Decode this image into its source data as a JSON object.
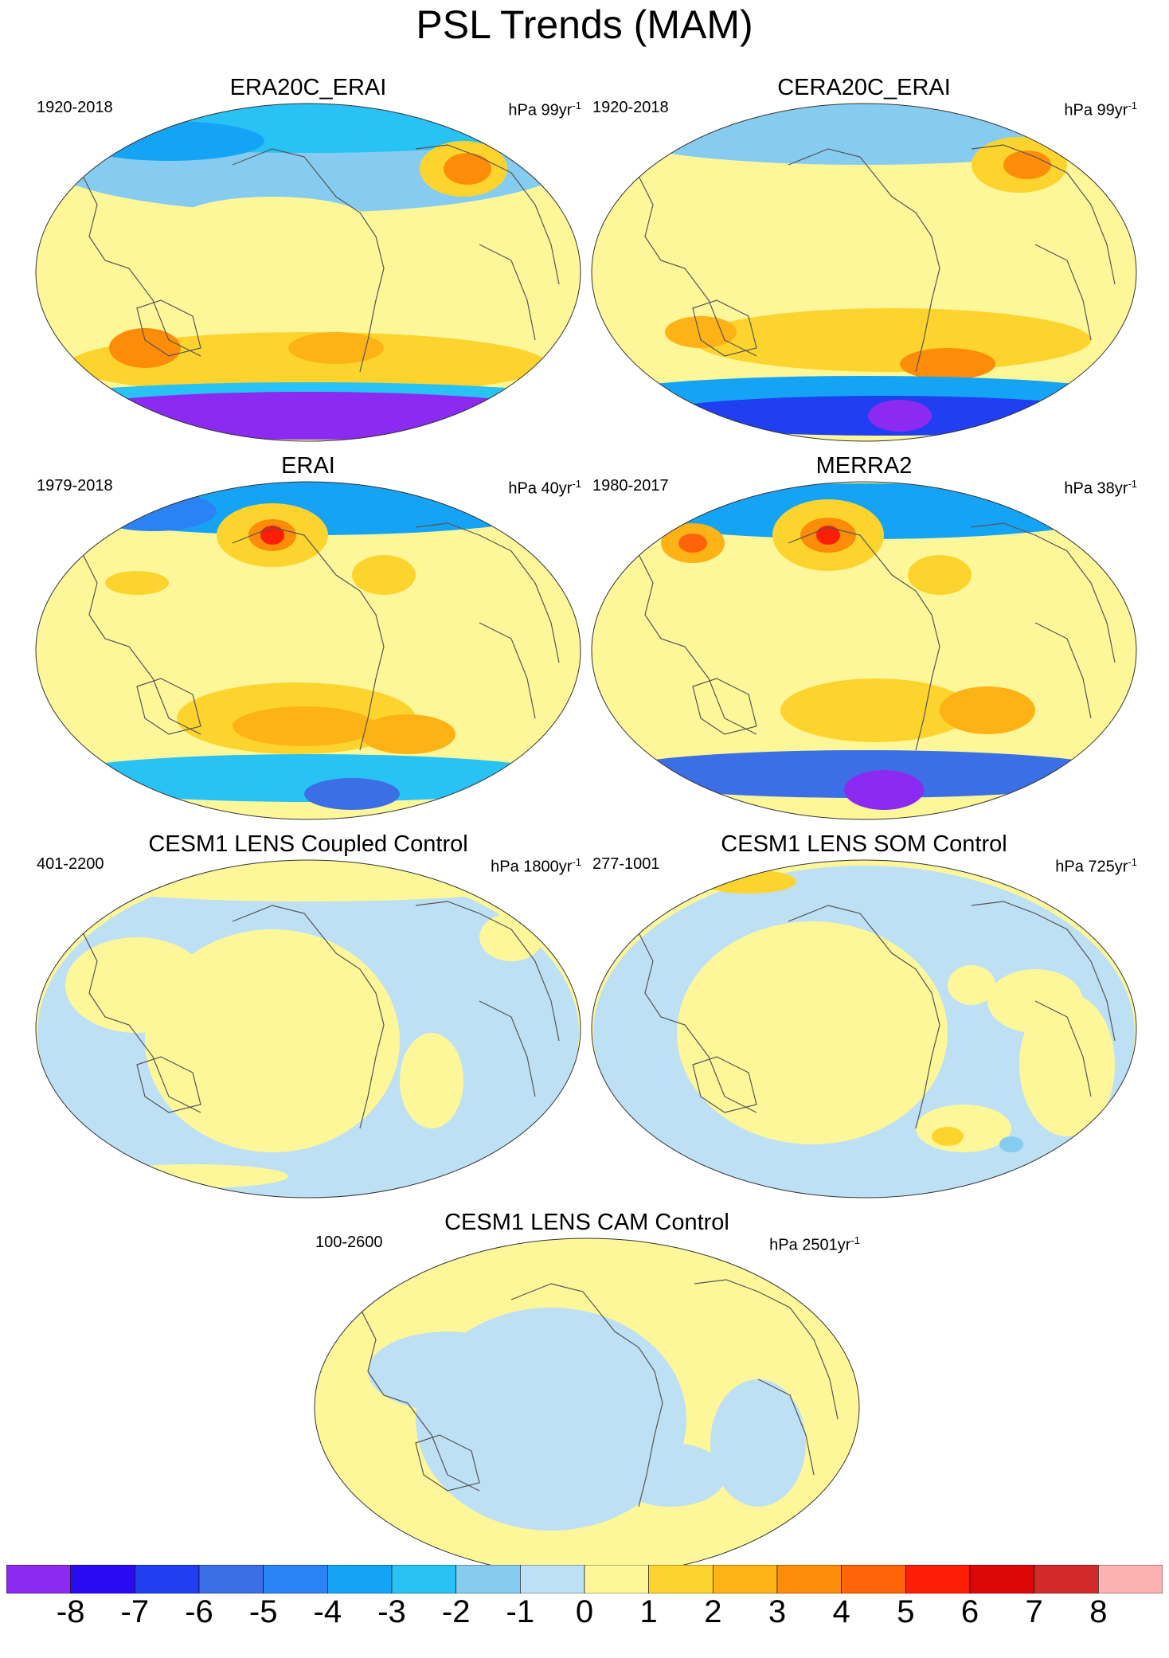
{
  "title": "PSL Trends (MAM)",
  "panels": [
    {
      "id": "era20c",
      "title": "ERA20C_ERAI",
      "period": "1920-2018",
      "units": "hPa 99yr",
      "units_sup": "-1"
    },
    {
      "id": "cera20c",
      "title": "CERA20C_ERAI",
      "period": "1920-2018",
      "units": "hPa 99yr",
      "units_sup": "-1"
    },
    {
      "id": "erai",
      "title": "ERAI",
      "period": "1979-2018",
      "units": "hPa 40yr",
      "units_sup": "-1"
    },
    {
      "id": "merra2",
      "title": "MERRA2",
      "period": "1980-2017",
      "units": "hPa 38yr",
      "units_sup": "-1"
    },
    {
      "id": "coupled",
      "title": "CESM1 LENS Coupled Control",
      "period": "401-2200",
      "units": "hPa 1800yr",
      "units_sup": "-1"
    },
    {
      "id": "som",
      "title": "CESM1 LENS SOM Control",
      "period": "277-1001",
      "units": "hPa 725yr",
      "units_sup": "-1"
    },
    {
      "id": "cam",
      "title": "CESM1 LENS CAM Control",
      "period": "100-2600",
      "units": "hPa 2501yr",
      "units_sup": "-1"
    }
  ],
  "colorbar": {
    "labels": [
      "-8",
      "-7",
      "-6",
      "-5",
      "-4",
      "-3",
      "-2",
      "-1",
      "0",
      "1",
      "2",
      "3",
      "4",
      "5",
      "6",
      "7",
      "8"
    ],
    "colors": [
      "#8b2af0",
      "#2a0af0",
      "#1f3ff0",
      "#3c6ee6",
      "#2a82f5",
      "#15a4f5",
      "#28c2f5",
      "#86ccf0",
      "#bde0f5",
      "#fdf79a",
      "#fdd42e",
      "#fdb215",
      "#fd8c08",
      "#fd6408",
      "#fd1e08",
      "#dc0808",
      "#d22a2a",
      "#fdb2b2"
    ]
  }
}
